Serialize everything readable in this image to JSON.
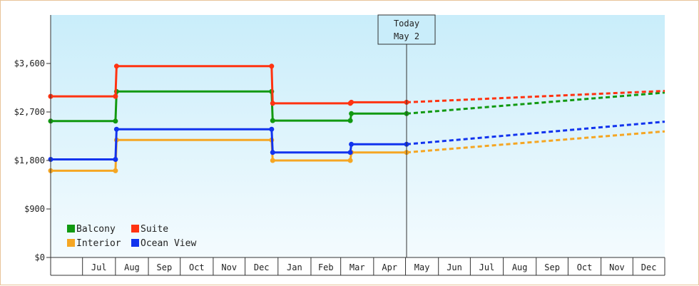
{
  "chart_data": {
    "type": "line",
    "title": "",
    "xlabel": "",
    "ylabel": "",
    "ylim": [
      0,
      4500
    ],
    "x_range": [
      "2024-06-01",
      "2025-12-31"
    ],
    "y_ticks": [
      {
        "value": 0,
        "label": "$0"
      },
      {
        "value": 900,
        "label": "$900"
      },
      {
        "value": 1800,
        "label": "$1,800"
      },
      {
        "value": 2700,
        "label": "$2,700"
      },
      {
        "value": 3600,
        "label": "$3,600"
      }
    ],
    "x_ticks": [
      {
        "month": "2024-07",
        "label": "Jul"
      },
      {
        "month": "2024-08",
        "label": "Aug"
      },
      {
        "month": "2024-09",
        "label": "Sep"
      },
      {
        "month": "2024-10",
        "label": "Oct"
      },
      {
        "month": "2024-11",
        "label": "Nov"
      },
      {
        "month": "2024-12",
        "label": "Dec"
      },
      {
        "month": "2025-01",
        "label": "Jan"
      },
      {
        "month": "2025-02",
        "label": "Feb"
      },
      {
        "month": "2025-03",
        "label": "Mar"
      },
      {
        "month": "2025-04",
        "label": "Apr"
      },
      {
        "month": "2025-05",
        "label": "May"
      },
      {
        "month": "2025-06",
        "label": "Jun"
      },
      {
        "month": "2025-07",
        "label": "Jul"
      },
      {
        "month": "2025-08",
        "label": "Aug"
      },
      {
        "month": "2025-09",
        "label": "Sep"
      },
      {
        "month": "2025-10",
        "label": "Oct"
      },
      {
        "month": "2025-11",
        "label": "Nov"
      },
      {
        "month": "2025-12",
        "label": "Dec"
      }
    ],
    "today": {
      "date": "2025-05-02",
      "line1": "Today",
      "line2": "May 2"
    },
    "grid": false,
    "legend_position": "bottom-left",
    "series": [
      {
        "name": "Balcony",
        "color": "#119911",
        "points": [
          [
            "2024-06-01",
            2530
          ],
          [
            "2024-08-01",
            2530
          ],
          [
            "2024-08-02",
            3080
          ],
          [
            "2024-12-26",
            3080
          ],
          [
            "2024-12-27",
            2540
          ],
          [
            "2025-03-10",
            2540
          ],
          [
            "2025-03-11",
            2670
          ],
          [
            "2025-05-02",
            2670
          ]
        ],
        "projection": [
          [
            "2025-05-02",
            2670
          ],
          [
            "2025-12-31",
            3060
          ]
        ]
      },
      {
        "name": "Suite",
        "color": "#ff3311",
        "points": [
          [
            "2024-06-01",
            2990
          ],
          [
            "2024-08-01",
            2990
          ],
          [
            "2024-08-02",
            3550
          ],
          [
            "2024-12-26",
            3550
          ],
          [
            "2024-12-27",
            2860
          ],
          [
            "2025-03-10",
            2860
          ],
          [
            "2025-03-11",
            2880
          ],
          [
            "2025-05-02",
            2880
          ]
        ],
        "projection": [
          [
            "2025-05-02",
            2880
          ],
          [
            "2025-12-31",
            3090
          ]
        ]
      },
      {
        "name": "Interior",
        "color": "#f5a623",
        "points": [
          [
            "2024-06-01",
            1610
          ],
          [
            "2024-08-01",
            1610
          ],
          [
            "2024-08-02",
            2180
          ],
          [
            "2024-12-26",
            2180
          ],
          [
            "2024-12-27",
            1800
          ],
          [
            "2025-03-10",
            1800
          ],
          [
            "2025-03-11",
            1950
          ],
          [
            "2025-05-02",
            1950
          ]
        ],
        "projection": [
          [
            "2025-05-02",
            1950
          ],
          [
            "2025-12-31",
            2340
          ]
        ]
      },
      {
        "name": "Ocean View",
        "color": "#1133ee",
        "points": [
          [
            "2024-06-01",
            1820
          ],
          [
            "2024-08-01",
            1820
          ],
          [
            "2024-08-02",
            2380
          ],
          [
            "2024-12-26",
            2380
          ],
          [
            "2024-12-27",
            1950
          ],
          [
            "2025-03-10",
            1950
          ],
          [
            "2025-03-11",
            2100
          ],
          [
            "2025-05-02",
            2100
          ]
        ],
        "projection": [
          [
            "2025-05-02",
            2100
          ],
          [
            "2025-12-31",
            2520
          ]
        ]
      }
    ]
  }
}
